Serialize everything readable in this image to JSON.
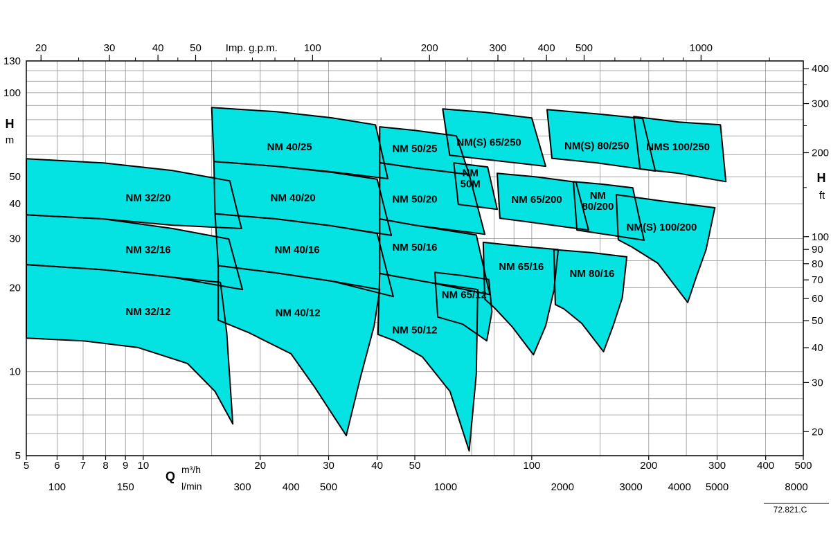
{
  "page": {
    "note": "72.821.C"
  },
  "chart_data": {
    "type": "area",
    "title": "",
    "description": "Pump selection chart: operating ranges (head H vs flow Q) for NM series centrifugal pumps on log-log axes",
    "colors": {
      "region_fill": "#04e2e2",
      "region_stroke": "#000000",
      "grid": "#8c8c8c",
      "axis": "#000000",
      "text": "#000000",
      "background": "#ffffff"
    },
    "x_axis": {
      "label": "Q",
      "unit_primary": "m³/h",
      "unit_secondary": "l/min",
      "scale": "log",
      "range_m3h": [
        5,
        500
      ],
      "ticks_m3h": [
        5,
        6,
        7,
        8,
        9,
        10,
        20,
        30,
        40,
        50,
        100,
        200,
        300,
        400,
        500
      ],
      "ticks_lmin": [
        100,
        150,
        300,
        400,
        500,
        1000,
        2000,
        3000,
        4000,
        5000,
        8000
      ],
      "lmin_per_m3h": 16.6667,
      "grid_m3h": [
        5,
        6,
        7,
        8,
        9,
        10,
        15,
        20,
        25,
        30,
        40,
        50,
        60,
        70,
        80,
        90,
        100,
        150,
        200,
        250,
        300,
        400,
        500
      ]
    },
    "top_axis": {
      "label": "Imp. g.p.m.",
      "gpm_per_m3h": 3.6661,
      "ticks_labeled": [
        20,
        30,
        40,
        50,
        100,
        200,
        300,
        400,
        500,
        1000
      ],
      "ticks_minor": [
        25,
        35,
        45,
        60,
        70,
        80,
        90,
        150,
        250,
        350,
        450,
        600,
        700,
        800,
        900,
        1500
      ]
    },
    "y_axis": {
      "label": "H",
      "unit": "m",
      "scale": "log",
      "range_m": [
        5,
        130
      ],
      "ticks_m": [
        130,
        100,
        50,
        40,
        30,
        20,
        10,
        5
      ],
      "grid_m": [
        5,
        6,
        7,
        8,
        9,
        10,
        15,
        20,
        25,
        30,
        40,
        50,
        60,
        70,
        80,
        90,
        100,
        110,
        120,
        130
      ]
    },
    "right_axis": {
      "label": "H",
      "unit": "ft",
      "ft_per_m": 3.2808,
      "ticks_ft": [
        400,
        300,
        200,
        100,
        90,
        80,
        70,
        60,
        50,
        40,
        30,
        20
      ],
      "ticks_minor_ft": [
        150,
        250,
        350
      ]
    },
    "note": "72.821.C",
    "regions": [
      {
        "name": "NM 32/20",
        "label": "NM 32/20",
        "label_q": 10.3,
        "label_h": 42,
        "points": [
          [
            5,
            58
          ],
          [
            7.9,
            56
          ],
          [
            11.9,
            52.6
          ],
          [
            16.7,
            48.3
          ],
          [
            17.9,
            32.6
          ],
          [
            11.9,
            33.5
          ],
          [
            7.9,
            35.3
          ],
          [
            5,
            36.5
          ]
        ]
      },
      {
        "name": "NM 32/16",
        "label": "NM 32/16",
        "label_q": 10.3,
        "label_h": 27.4,
        "points": [
          [
            5,
            36.5
          ],
          [
            7.9,
            35.3
          ],
          [
            11.9,
            32.6
          ],
          [
            16.6,
            29.9
          ],
          [
            18,
            19.7
          ],
          [
            11.9,
            21.8
          ],
          [
            7.9,
            23.2
          ],
          [
            5,
            24.2
          ]
        ]
      },
      {
        "name": "NM 32/12",
        "label": "NM 32/12",
        "label_q": 10.3,
        "label_h": 16.4,
        "points": [
          [
            5,
            24.2
          ],
          [
            7.9,
            23.2
          ],
          [
            11.9,
            21.8
          ],
          [
            15.8,
            20.9
          ],
          [
            16.4,
            13.8
          ],
          [
            17,
            6.5
          ],
          [
            15.3,
            8.5
          ],
          [
            13,
            10.7
          ],
          [
            9.7,
            12.2
          ],
          [
            7,
            12.9
          ],
          [
            5,
            13.2
          ]
        ]
      },
      {
        "name": "NM 40/25",
        "label": "NM 40/25",
        "label_q": 23.8,
        "label_h": 64,
        "points": [
          [
            15,
            88.5
          ],
          [
            22,
            85.5
          ],
          [
            30.7,
            81.2
          ],
          [
            39.6,
            76.7
          ],
          [
            42.6,
            49.2
          ],
          [
            30.7,
            52
          ],
          [
            22,
            54.5
          ],
          [
            15.2,
            56.7
          ]
        ]
      },
      {
        "name": "NM 40/20",
        "label": "NM 40/20",
        "label_q": 24.3,
        "label_h": 42,
        "points": [
          [
            15.2,
            56.7
          ],
          [
            22,
            54.5
          ],
          [
            30.7,
            51.8
          ],
          [
            40,
            49
          ],
          [
            43.5,
            30.8
          ],
          [
            30.7,
            33.3
          ],
          [
            22,
            35.3
          ],
          [
            15.3,
            36.8
          ]
        ]
      },
      {
        "name": "NM 40/16",
        "label": "NM 40/16",
        "label_q": 24.9,
        "label_h": 27.4,
        "points": [
          [
            15.3,
            36.8
          ],
          [
            22,
            35.3
          ],
          [
            30.7,
            33.3
          ],
          [
            40,
            31.3
          ],
          [
            44,
            18.6
          ],
          [
            30.7,
            21.1
          ],
          [
            22,
            22.6
          ],
          [
            15.6,
            24
          ]
        ]
      },
      {
        "name": "NM 40/12",
        "label": "NM 40/12",
        "label_q": 25,
        "label_h": 16.3,
        "points": [
          [
            15.6,
            24
          ],
          [
            22,
            22.6
          ],
          [
            30.7,
            21.1
          ],
          [
            40.6,
            19.7
          ],
          [
            39.3,
            14.6
          ],
          [
            36.2,
            9.5
          ],
          [
            33.3,
            5.9
          ],
          [
            27.7,
            8.75
          ],
          [
            24,
            11.6
          ],
          [
            18.7,
            13.8
          ],
          [
            15.6,
            15.3
          ]
        ]
      },
      {
        "name": "NM 50/25",
        "label": "NM 50/25",
        "label_q": 50,
        "label_h": 63,
        "points": [
          [
            40.6,
            75.5
          ],
          [
            50,
            73.3
          ],
          [
            64,
            70
          ],
          [
            69,
            50.9
          ],
          [
            50,
            53.8
          ],
          [
            40.6,
            56.1
          ]
        ]
      },
      {
        "name": "NM 50M",
        "label": "NM\n50M",
        "label_q": 69.5,
        "label_h": 49.3,
        "points": [
          [
            63,
            56
          ],
          [
            77,
            54.2
          ],
          [
            81.5,
            38.2
          ],
          [
            64.7,
            39.8
          ]
        ]
      },
      {
        "name": "NM 50/20",
        "label": "NM 50/20",
        "label_q": 50,
        "label_h": 41.6,
        "points": [
          [
            40.6,
            56.1
          ],
          [
            50,
            53.8
          ],
          [
            69,
            50.9
          ],
          [
            75.7,
            31.1
          ],
          [
            50,
            33.5
          ],
          [
            40.6,
            35.3
          ]
        ]
      },
      {
        "name": "NM 50/16",
        "label": "NM 50/16",
        "label_q": 50,
        "label_h": 27.9,
        "points": [
          [
            40.6,
            35.3
          ],
          [
            50,
            33.5
          ],
          [
            72,
            30.9
          ],
          [
            78,
            18.9
          ],
          [
            54.5,
            20.9
          ],
          [
            40.6,
            22.5
          ]
        ]
      },
      {
        "name": "NM 50/12",
        "label": "NM 50/12",
        "label_q": 50,
        "label_h": 14.1,
        "points": [
          [
            40.6,
            22.5
          ],
          [
            54.5,
            20.9
          ],
          [
            72.6,
            19.7
          ],
          [
            72,
            9.8
          ],
          [
            69,
            5.2
          ],
          [
            61.6,
            8.5
          ],
          [
            52.3,
            11.3
          ],
          [
            44.4,
            12.9
          ],
          [
            40.2,
            13.6
          ]
        ]
      },
      {
        "name": "NM(S) 65/250",
        "label": "NM(S) 65/250",
        "label_q": 77.6,
        "label_h": 66.5,
        "points": [
          [
            59,
            87.5
          ],
          [
            75.7,
            85.1
          ],
          [
            100,
            81.2
          ],
          [
            108.6,
            54.5
          ],
          [
            75.7,
            57.7
          ],
          [
            61.5,
            59.7
          ]
        ]
      },
      {
        "name": "NM 65/200",
        "label": "NM 65/200",
        "label_q": 103,
        "label_h": 41.4,
        "points": [
          [
            81.5,
            51.4
          ],
          [
            103,
            49.9
          ],
          [
            130,
            47.8
          ],
          [
            140,
            32.2
          ],
          [
            103,
            34.1
          ],
          [
            82.8,
            35.5
          ]
        ]
      },
      {
        "name": "NM 65/16",
        "label": "NM 65/16",
        "label_q": 94,
        "label_h": 23.8,
        "points": [
          [
            75,
            29.1
          ],
          [
            93,
            28.2
          ],
          [
            117,
            27.4
          ],
          [
            114,
            19.5
          ],
          [
            108.6,
            14.6
          ],
          [
            101,
            11.5
          ],
          [
            89,
            14.5
          ],
          [
            80.3,
            16.9
          ],
          [
            75.7,
            18.2
          ]
        ]
      },
      {
        "name": "NM 65/12",
        "label": "NM 65/12",
        "label_q": 67,
        "label_h": 18.9,
        "points": [
          [
            56.3,
            22.7
          ],
          [
            66.4,
            22.1
          ],
          [
            77.5,
            21.4
          ],
          [
            79,
            16.4
          ],
          [
            76.6,
            12.9
          ],
          [
            66.4,
            14.8
          ],
          [
            57.3,
            15.7
          ]
        ]
      },
      {
        "name": "NM(S) 80/250",
        "label": "NM(S) 80/250",
        "label_q": 147,
        "label_h": 64.5,
        "points": [
          [
            109.5,
            87
          ],
          [
            146,
            84.1
          ],
          [
            193,
            80.8
          ],
          [
            208,
            52.4
          ],
          [
            146,
            56.1
          ],
          [
            112.7,
            58.2
          ]
        ]
      },
      {
        "name": "NM 80/200",
        "label": "NM\n80/200",
        "label_q": 148,
        "label_h": 41,
        "points": [
          [
            128,
            48
          ],
          [
            152,
            47
          ],
          [
            182,
            45.6
          ],
          [
            194.5,
            29.6
          ],
          [
            152,
            31.2
          ],
          [
            130.7,
            32.2
          ]
        ]
      },
      {
        "name": "NM 80/16",
        "label": "NM 80/16",
        "label_q": 143,
        "label_h": 22.5,
        "points": [
          [
            114,
            27.4
          ],
          [
            143,
            26.7
          ],
          [
            175.6,
            25.8
          ],
          [
            171,
            18.4
          ],
          [
            162,
            14.6
          ],
          [
            153,
            11.8
          ],
          [
            134.5,
            14.9
          ],
          [
            121,
            16.8
          ],
          [
            115,
            17.4
          ]
        ]
      },
      {
        "name": "NMS 100/250",
        "label": "NMS 100/250",
        "label_q": 238,
        "label_h": 64,
        "points": [
          [
            183,
            82.2
          ],
          [
            239,
            78.5
          ],
          [
            306,
            76.7
          ],
          [
            316,
            48
          ],
          [
            239,
            51.4
          ],
          [
            190,
            53.3
          ]
        ]
      },
      {
        "name": "NM(S) 100/200",
        "label": "NM(S) 100/200",
        "label_q": 216,
        "label_h": 33,
        "points": [
          [
            165,
            43.1
          ],
          [
            216,
            40.9
          ],
          [
            296,
            38.7
          ],
          [
            281,
            27.4
          ],
          [
            265,
            21.8
          ],
          [
            252,
            17.7
          ],
          [
            211,
            24.5
          ],
          [
            181,
            28
          ],
          [
            167,
            29.7
          ]
        ]
      }
    ]
  }
}
